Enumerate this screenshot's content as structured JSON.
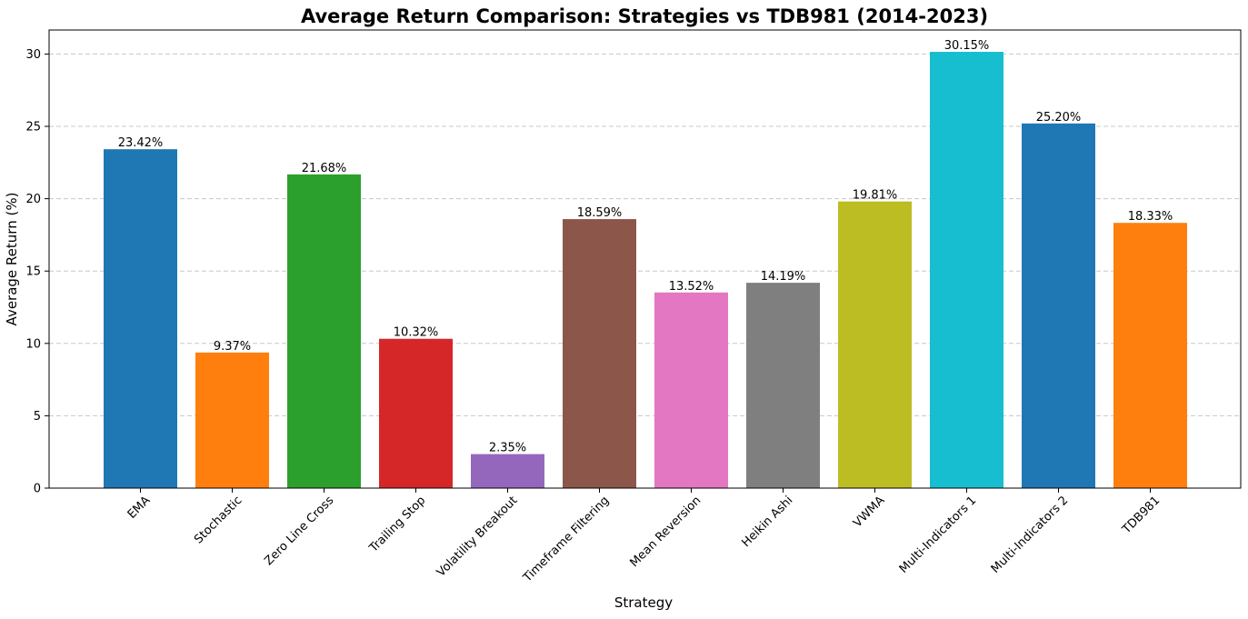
{
  "chart_data": {
    "type": "bar",
    "title": "Average Return Comparison: Strategies vs TDB981 (2014-2023)",
    "xlabel": "Strategy",
    "ylabel": "Average Return (%)",
    "categories": [
      "EMA",
      "Stochastic",
      "Zero Line Cross",
      "Trailing Stop",
      "Volatility Breakout",
      "Timeframe Filtering",
      "Mean Reversion",
      "Heikin Ashi",
      "VWMA",
      "Multi-Indicators 1",
      "Multi-Indicators 2",
      "TDB981"
    ],
    "values": [
      23.42,
      9.37,
      21.68,
      10.32,
      2.35,
      18.59,
      13.52,
      14.19,
      19.81,
      30.15,
      25.2,
      18.33
    ],
    "value_labels": [
      "23.42%",
      "9.37%",
      "21.68%",
      "10.32%",
      "2.35%",
      "18.59%",
      "13.52%",
      "14.19%",
      "19.81%",
      "30.15%",
      "25.20%",
      "18.33%"
    ],
    "colors": [
      "#1f77b4",
      "#ff7f0e",
      "#2ca02c",
      "#d62728",
      "#9467bd",
      "#8c564b",
      "#e377c2",
      "#7f7f7f",
      "#bcbd22",
      "#17becf",
      "#1f77b4",
      "#ff7f0e"
    ],
    "yticks": [
      "0",
      "5",
      "10",
      "15",
      "20",
      "25",
      "30"
    ],
    "ylim": [
      0,
      31.66
    ],
    "grid": "y-dashed"
  }
}
